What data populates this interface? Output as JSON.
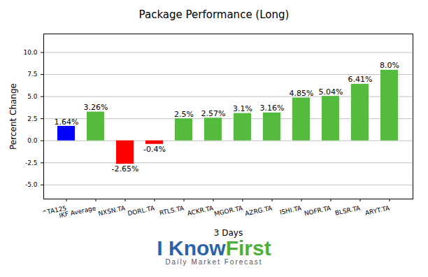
{
  "chart_data": {
    "type": "bar",
    "title": "Package Performance (Long)",
    "x_label": "3 Days",
    "y_label": "Percent Change",
    "categories": [
      "^TA125",
      "IKF Average",
      "NXSN.TA",
      "DORL.TA",
      "RTLS.TA",
      "ACKR.TA",
      "MGOR.TA",
      "AZRG.TA",
      "ISHI.TA",
      "NOFR.TA",
      "BLSR.TA",
      "ARYT.TA"
    ],
    "values": [
      1.64,
      3.26,
      -2.65,
      -0.4,
      2.5,
      2.57,
      3.1,
      3.16,
      4.85,
      5.04,
      6.41,
      8.0
    ],
    "value_labels": [
      "1.64%",
      "3.26%",
      "-2.65%",
      "-0.4%",
      "2.5%",
      "2.57%",
      "3.1%",
      "3.16%",
      "4.85%",
      "5.04%",
      "6.41%",
      "8.0%"
    ],
    "colors": [
      "#0000ff",
      "#55bb3f",
      "#ff0000",
      "#ff0000",
      "#55bb3f",
      "#55bb3f",
      "#55bb3f",
      "#55bb3f",
      "#55bb3f",
      "#55bb3f",
      "#55bb3f",
      "#55bb3f"
    ],
    "ylim": [
      -6.6,
      12.1
    ],
    "yticks": [
      {
        "value": -5,
        "label": "-5.0"
      },
      {
        "value": -2.5,
        "label": "-2.5"
      },
      {
        "value": 0,
        "label": "0.0"
      },
      {
        "value": 2.5,
        "label": "2.5"
      },
      {
        "value": 5,
        "label": "5.0"
      },
      {
        "value": 7.5,
        "label": "7.5"
      },
      {
        "value": 10,
        "label": "10.0"
      }
    ],
    "grid": true,
    "data_labels": true,
    "annotations": [
      "I Know",
      "First",
      "Daily Market Forecast"
    ]
  }
}
